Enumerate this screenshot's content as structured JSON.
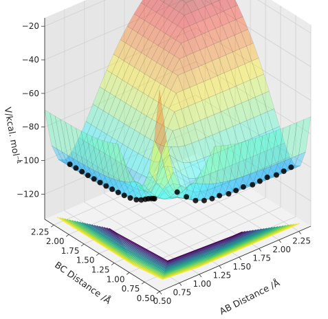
{
  "chart_data": {
    "type": "surface3d",
    "title": "",
    "zlabel": "V/kcal. mol⁻¹",
    "xlabel": "AB Distance /Å",
    "ylabel": "BC Distance /Å",
    "x_ticks": [
      "0.50",
      "0.75",
      "1.00",
      "1.25",
      "1.50",
      "1.75",
      "2.00",
      "2.25"
    ],
    "y_ticks": [
      "0.50",
      "0.75",
      "1.00",
      "1.25",
      "1.50",
      "1.75",
      "2.00",
      "2.25"
    ],
    "z_ticks": [
      "−20",
      "−40",
      "−60",
      "−80",
      "−100",
      "−120"
    ],
    "xlim": [
      0.5,
      2.4
    ],
    "ylim": [
      0.5,
      2.4
    ],
    "zlim": [
      -135,
      -15
    ],
    "grid": true,
    "colormap_surface": "jet",
    "colormap_contours": "viridis",
    "surface_alpha": 0.35,
    "trajectory_color": "#000000",
    "trajectory_AB_approach": {
      "x": [
        0.74,
        0.74,
        0.74,
        0.74,
        0.74,
        0.74,
        0.74,
        0.74,
        0.74,
        0.74,
        0.74,
        0.74,
        0.74,
        0.74,
        0.74,
        0.74,
        0.74,
        0.74
      ],
      "y": [
        2.3,
        2.2,
        2.1,
        2.0,
        1.9,
        1.8,
        1.7,
        1.6,
        1.5,
        1.4,
        1.3,
        1.2,
        1.12,
        1.05,
        1.0,
        0.95,
        0.92,
        0.9
      ]
    },
    "trajectory_BC_exit": {
      "x": [
        0.95,
        1.05,
        1.15,
        1.25,
        1.35,
        1.45,
        1.55,
        1.65,
        1.75,
        1.85,
        1.95,
        2.05,
        2.15,
        2.25,
        2.35
      ],
      "y": [
        0.8,
        0.78,
        0.76,
        0.75,
        0.75,
        0.76,
        0.74,
        0.75,
        0.76,
        0.74,
        0.75,
        0.76,
        0.74,
        0.75,
        0.76
      ]
    }
  }
}
